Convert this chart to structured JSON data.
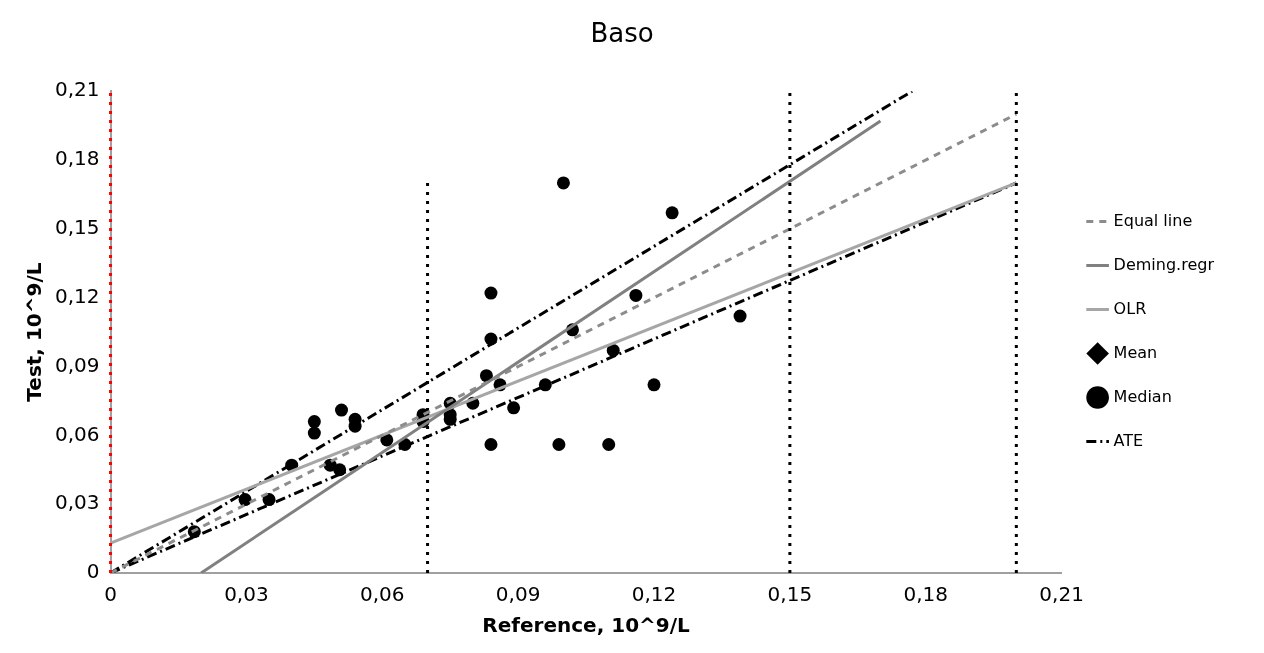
{
  "chart_data": {
    "type": "scatter",
    "title": "Baso",
    "xlabel": "Reference, 10^9/L",
    "ylabel": "Test, 10^9/L",
    "xlim": [
      0,
      0.21
    ],
    "ylim": [
      0,
      0.21
    ],
    "xticks": [
      {
        "value": 0,
        "label": "0"
      },
      {
        "value": 0.03,
        "label": "0,03"
      },
      {
        "value": 0.06,
        "label": "0,06"
      },
      {
        "value": 0.09,
        "label": "0,09"
      },
      {
        "value": 0.12,
        "label": "0,12"
      },
      {
        "value": 0.15,
        "label": "0,15"
      },
      {
        "value": 0.18,
        "label": "0,18"
      },
      {
        "value": 0.21,
        "label": "0,21"
      }
    ],
    "yticks": [
      {
        "value": 0,
        "label": "0"
      },
      {
        "value": 0.03,
        "label": "0,03"
      },
      {
        "value": 0.06,
        "label": "0,06"
      },
      {
        "value": 0.09,
        "label": "0,09"
      },
      {
        "value": 0.12,
        "label": "0,12"
      },
      {
        "value": 0.15,
        "label": "0,15"
      },
      {
        "value": 0.18,
        "label": "0,18"
      },
      {
        "value": 0.21,
        "label": "0,21"
      }
    ],
    "grid": false,
    "legend": "right",
    "series": [
      {
        "type": "line",
        "name": "Equal line",
        "color": "#8c8c8c",
        "line_style": "dashed",
        "marker": "none",
        "x": [
          0,
          0.2
        ],
        "values": [
          0,
          0.2
        ]
      },
      {
        "type": "line",
        "name": "Deming.regr",
        "color": "#808080",
        "line_style": "solid",
        "marker": "none",
        "x": [
          0.02,
          0.17
        ],
        "values": [
          0,
          0.197
        ]
      },
      {
        "type": "line",
        "name": "OLR",
        "color": "#a6a6a6",
        "line_style": "solid",
        "marker": "none",
        "x": [
          0,
          0.2
        ],
        "values": [
          0.013,
          0.17
        ]
      },
      {
        "type": "scatter",
        "name": "Mean",
        "color": "#000000",
        "marker": "diamond",
        "x": [
          null
        ],
        "values": [
          null
        ]
      },
      {
        "type": "scatter",
        "name": "Median",
        "color": "#000000",
        "marker": "circle",
        "x": [
          0.0185,
          0.0297,
          0.035,
          0.04,
          0.045,
          0.045,
          0.0485,
          0.0506,
          0.051,
          0.054,
          0.054,
          0.061,
          0.065,
          0.069,
          0.069,
          0.075,
          0.075,
          0.075,
          0.08,
          0.083,
          0.084,
          0.084,
          0.084,
          0.086,
          0.089,
          0.096,
          0.099,
          0.1,
          0.102,
          0.11,
          0.111,
          0.116,
          0.12,
          0.124,
          0.139
        ],
        "values": [
          0.018,
          0.032,
          0.032,
          0.047,
          0.066,
          0.061,
          0.047,
          0.045,
          0.071,
          0.067,
          0.064,
          0.058,
          0.056,
          0.069,
          0.066,
          0.069,
          0.074,
          0.067,
          0.074,
          0.086,
          0.122,
          0.102,
          0.056,
          0.082,
          0.072,
          0.082,
          0.056,
          0.17,
          0.106,
          0.056,
          0.097,
          0.121,
          0.082,
          0.157,
          0.112
        ]
      },
      {
        "type": "line",
        "name": "ATE",
        "color": "#000000",
        "line_style": "dashdot",
        "marker": "none",
        "x": [
          0,
          0.177,
          null,
          0,
          0.2
        ],
        "values": [
          0,
          0.21,
          null,
          0,
          0.17
        ]
      },
      {
        "type": "line",
        "color": "#000000",
        "line_style": "dotted",
        "marker": "none",
        "x": [
          0.07,
          0.07
        ],
        "values": [
          0,
          0.17
        ]
      }
    ],
    "ref_lines": [
      {
        "axis": "x",
        "value": 0.15,
        "color": "#000000",
        "line_style": "dotted"
      },
      {
        "axis": "x",
        "value": 0.2,
        "color": "#000000",
        "line_style": "dotted"
      },
      {
        "axis": "x",
        "value": 0,
        "color": "#ff0000",
        "line_style": "dotted"
      }
    ]
  }
}
